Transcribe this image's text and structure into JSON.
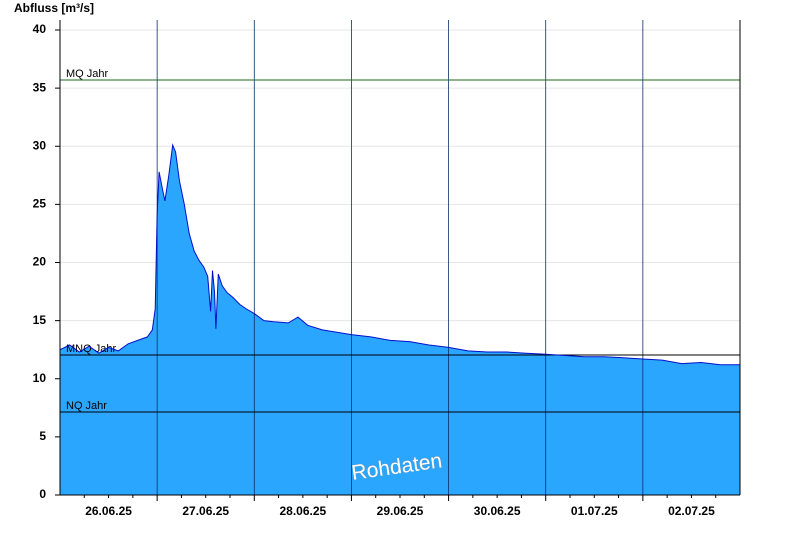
{
  "chart_data": {
    "type": "area",
    "y_label": "Abfluss [m³/s]",
    "watermark": "Rohdaten",
    "xlim": [
      0,
      7
    ],
    "xticks": [
      {
        "value": 0.5,
        "label": "26.06.25"
      },
      {
        "value": 1.5,
        "label": "27.06.25"
      },
      {
        "value": 2.5,
        "label": "28.06.25"
      },
      {
        "value": 3.5,
        "label": "29.06.25"
      },
      {
        "value": 4.5,
        "label": "30.06.25"
      },
      {
        "value": 5.5,
        "label": "01.07.25"
      },
      {
        "value": 6.5,
        "label": "02.07.25"
      }
    ],
    "xgrid": [
      1,
      2,
      3,
      4,
      5,
      6
    ],
    "ylim": [
      0,
      40
    ],
    "yticks": [
      0,
      5,
      10,
      15,
      20,
      25,
      30,
      35,
      40
    ],
    "grid": true,
    "fill_color": "#2ba6ff",
    "line_color": "#0010c8",
    "x": [
      0,
      0.1,
      0.2,
      0.3,
      0.4,
      0.5,
      0.6,
      0.7,
      0.8,
      0.9,
      0.95,
      0.98,
      1.0,
      1.02,
      1.05,
      1.08,
      1.12,
      1.16,
      1.19,
      1.23,
      1.28,
      1.33,
      1.38,
      1.43,
      1.48,
      1.52,
      1.55,
      1.57,
      1.59,
      1.605,
      1.63,
      1.67,
      1.72,
      1.78,
      1.85,
      1.92,
      2.0,
      2.1,
      2.2,
      2.35,
      2.45,
      2.55,
      2.7,
      2.85,
      3.0,
      3.2,
      3.4,
      3.6,
      3.8,
      4.0,
      4.2,
      4.4,
      4.6,
      4.8,
      5.0,
      5.2,
      5.4,
      5.6,
      5.8,
      6.0,
      6.2,
      6.4,
      6.6,
      6.8,
      7.0
    ],
    "values": [
      12.5,
      12.9,
      12.3,
      12.8,
      12.2,
      12.7,
      12.4,
      13.0,
      13.3,
      13.6,
      14.2,
      16,
      24,
      27.8,
      26.5,
      25.3,
      27.5,
      30.1,
      29.5,
      27,
      25,
      22.5,
      21,
      20.2,
      19.6,
      18.8,
      15.8,
      19.3,
      17.5,
      14.3,
      19.0,
      18.0,
      17.4,
      17.0,
      16.4,
      16.0,
      15.6,
      15.0,
      14.9,
      14.8,
      15.3,
      14.6,
      14.2,
      14.0,
      13.8,
      13.6,
      13.3,
      13.2,
      12.9,
      12.7,
      12.4,
      12.3,
      12.3,
      12.2,
      12.1,
      12.0,
      11.9,
      11.9,
      11.8,
      11.7,
      11.6,
      11.3,
      11.4,
      11.2,
      11.2
    ],
    "reference_lines": [
      {
        "label": "MQ Jahr",
        "value": 35.7,
        "color": "#1f6b1f"
      },
      {
        "label": "MNQ Jahr",
        "value": 12.04,
        "color": "#000000"
      },
      {
        "label": "NQ Jahr",
        "value": 7.14,
        "color": "#000000"
      }
    ]
  }
}
